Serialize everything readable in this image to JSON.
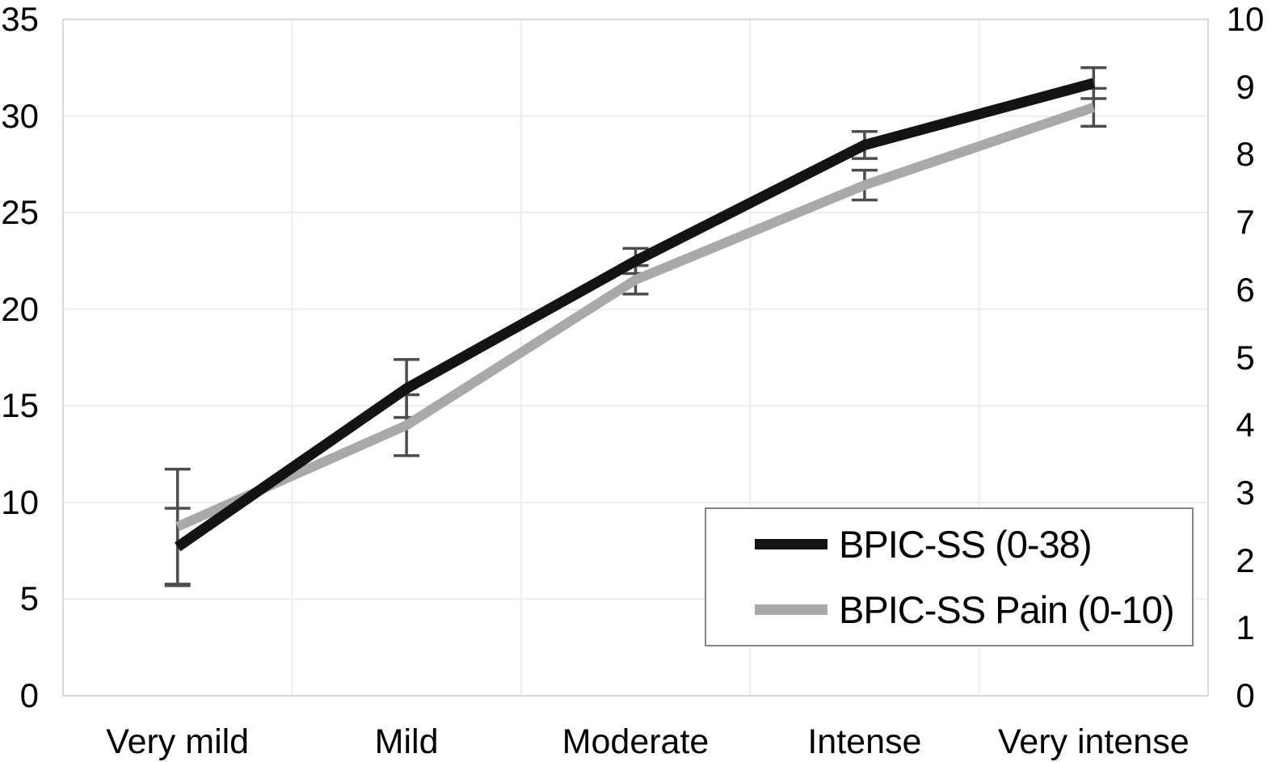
{
  "chart_data": {
    "type": "line",
    "categories": [
      "Very mild",
      "Mild",
      "Moderate",
      "Intense",
      "Very intense"
    ],
    "series": [
      {
        "name": "BPIC-SS (0-38)",
        "axis": "left",
        "color": "#131313",
        "stroke_width": 13,
        "values": [
          7.7,
          15.9,
          22.5,
          28.5,
          31.7
        ],
        "errors": [
          2.0,
          1.5,
          0.65,
          0.7,
          0.8
        ]
      },
      {
        "name": "BPIC-SS Pain (0-10)",
        "axis": "right",
        "color": "#a9a9a9",
        "stroke_width": 12,
        "values": [
          2.5,
          4.0,
          6.15,
          7.55,
          8.7
        ],
        "errors": [
          0.85,
          0.45,
          0.21,
          0.22,
          0.28
        ]
      }
    ],
    "left_axis": {
      "min": 0,
      "max": 35,
      "step": 5,
      "ticks": [
        0,
        5,
        10,
        15,
        20,
        25,
        30,
        35
      ]
    },
    "right_axis": {
      "min": 0,
      "max": 10,
      "step": 1,
      "ticks": [
        0,
        1,
        2,
        3,
        4,
        5,
        6,
        7,
        8,
        9,
        10
      ]
    },
    "legend": {
      "position": "inside-bottom-right"
    },
    "grid": true,
    "colors": {
      "error_bar": "#4d4d4d",
      "gridline": "#ececec",
      "plot_border": "#d9d9d9",
      "legend_border": "#858585",
      "text": "#000000"
    }
  }
}
